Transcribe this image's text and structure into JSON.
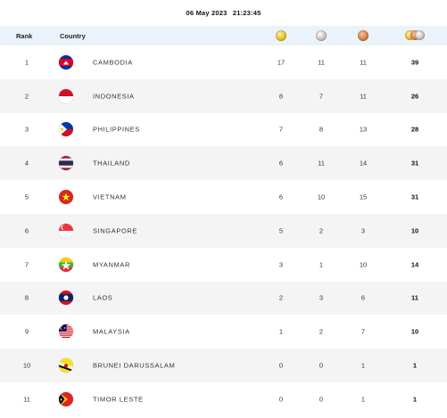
{
  "header": {
    "date": "06 May 2023",
    "time": "21:23:45"
  },
  "table": {
    "col_rank": "Rank",
    "col_country": "Country",
    "medal_icons": [
      "gold-medal-icon",
      "silver-medal-icon",
      "bronze-medal-icon",
      "total-medals-icon"
    ],
    "rows": [
      {
        "rank": "1",
        "country": "CAMBODIA",
        "flag": "cambodia-flag-icon",
        "gold": "17",
        "silver": "11",
        "bronze": "11",
        "total": "39"
      },
      {
        "rank": "2",
        "country": "INDONESIA",
        "flag": "indonesia-flag-icon",
        "gold": "8",
        "silver": "7",
        "bronze": "11",
        "total": "26"
      },
      {
        "rank": "3",
        "country": "PHILIPPINES",
        "flag": "philippines-flag-icon",
        "gold": "7",
        "silver": "8",
        "bronze": "13",
        "total": "28"
      },
      {
        "rank": "4",
        "country": "THAILAND",
        "flag": "thailand-flag-icon",
        "gold": "6",
        "silver": "11",
        "bronze": "14",
        "total": "31"
      },
      {
        "rank": "5",
        "country": "VIETNAM",
        "flag": "vietnam-flag-icon",
        "gold": "6",
        "silver": "10",
        "bronze": "15",
        "total": "31"
      },
      {
        "rank": "6",
        "country": "SINGAPORE",
        "flag": "singapore-flag-icon",
        "gold": "5",
        "silver": "2",
        "bronze": "3",
        "total": "10"
      },
      {
        "rank": "7",
        "country": "MYANMAR",
        "flag": "myanmar-flag-icon",
        "gold": "3",
        "silver": "1",
        "bronze": "10",
        "total": "14"
      },
      {
        "rank": "8",
        "country": "LAOS",
        "flag": "laos-flag-icon",
        "gold": "2",
        "silver": "3",
        "bronze": "6",
        "total": "11"
      },
      {
        "rank": "9",
        "country": "MALAYSIA",
        "flag": "malaysia-flag-icon",
        "gold": "1",
        "silver": "2",
        "bronze": "7",
        "total": "10"
      },
      {
        "rank": "10",
        "country": "BRUNEI DARUSSALAM",
        "flag": "brunei-flag-icon",
        "gold": "0",
        "silver": "0",
        "bronze": "1",
        "total": "1"
      },
      {
        "rank": "11",
        "country": "TIMOR LESTE",
        "flag": "timor-leste-flag-icon",
        "gold": "0",
        "silver": "0",
        "bronze": "1",
        "total": "1"
      }
    ]
  },
  "colors": {
    "header_bg": "#eaf3fb",
    "alt_row_bg": "#f4f4f4"
  }
}
